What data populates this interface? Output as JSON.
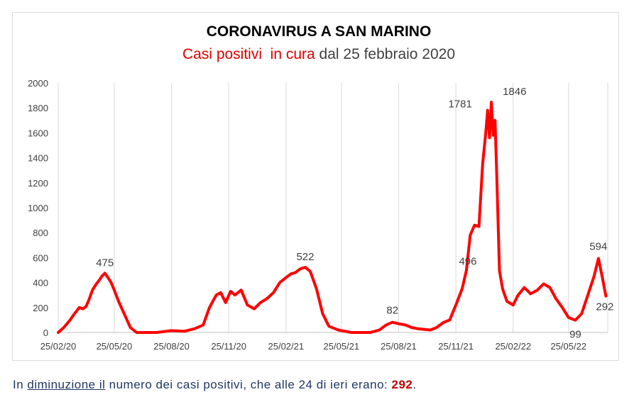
{
  "chart_data": {
    "type": "line",
    "title": "CORONAVIRUS A SAN MARINO",
    "subtitle_parts": [
      {
        "text": "Casi positivi  in cura",
        "color": "#e00000"
      },
      {
        "text": " dal 25 febbraio 2020",
        "color": "#404040"
      }
    ],
    "xlabel": "",
    "ylabel": "",
    "ylim": [
      0,
      2000
    ],
    "y_ticks": [
      "0",
      "200",
      "400",
      "600",
      "800",
      "1000",
      "1200",
      "1400",
      "1600",
      "1800",
      "2000"
    ],
    "x_ticks": [
      "25/02/20",
      "25/05/20",
      "25/08/20",
      "25/11/20",
      "25/02/21",
      "25/05/21",
      "25/08/21",
      "25/11/21",
      "25/02/22",
      "25/05/22"
    ],
    "grid": "vertical",
    "series_color": "#ff0000",
    "series": [
      {
        "x": [
          "2020-02-25",
          "2020-03-05",
          "2020-03-15",
          "2020-03-22",
          "2020-03-30",
          "2020-04-05",
          "2020-04-10",
          "2020-04-15",
          "2020-04-20",
          "2020-04-25",
          "2020-05-01",
          "2020-05-05",
          "2020-05-10",
          "2020-05-15",
          "2020-05-20",
          "2020-05-25",
          "2020-06-01",
          "2020-06-10",
          "2020-06-20",
          "2020-06-30",
          "2020-07-15",
          "2020-08-01",
          "2020-08-25",
          "2020-09-15",
          "2020-10-01",
          "2020-10-15",
          "2020-10-25",
          "2020-11-05",
          "2020-11-12",
          "2020-11-20",
          "2020-11-28",
          "2020-12-05",
          "2020-12-15",
          "2020-12-25",
          "2021-01-05",
          "2021-01-15",
          "2021-01-25",
          "2021-02-05",
          "2021-02-15",
          "2021-02-25",
          "2021-03-05",
          "2021-03-12",
          "2021-03-20",
          "2021-03-28",
          "2021-04-05",
          "2021-04-15",
          "2021-04-25",
          "2021-05-05",
          "2021-05-20",
          "2021-06-10",
          "2021-07-10",
          "2021-07-25",
          "2021-08-05",
          "2021-08-15",
          "2021-08-25",
          "2021-09-05",
          "2021-09-15",
          "2021-09-25",
          "2021-10-05",
          "2021-10-15",
          "2021-10-25",
          "2021-11-05",
          "2021-11-15",
          "2021-11-25",
          "2021-12-05",
          "2021-12-12",
          "2021-12-18",
          "2021-12-25",
          "2022-01-01",
          "2022-01-07",
          "2022-01-12",
          "2022-01-15",
          "2022-01-18",
          "2022-01-21",
          "2022-01-24",
          "2022-01-27",
          "2022-01-30",
          "2022-02-03",
          "2022-02-08",
          "2022-02-15",
          "2022-02-25",
          "2022-03-05",
          "2022-03-15",
          "2022-03-25",
          "2022-04-05",
          "2022-04-15",
          "2022-04-25",
          "2022-05-05",
          "2022-05-15",
          "2022-05-25",
          "2022-06-05",
          "2022-06-15",
          "2022-06-25",
          "2022-07-05",
          "2022-07-12",
          "2022-07-18",
          "2022-07-24"
        ],
        "y": [
          0,
          40,
          100,
          150,
          200,
          190,
          210,
          270,
          340,
          380,
          420,
          450,
          475,
          440,
          400,
          340,
          250,
          150,
          40,
          0,
          0,
          0,
          15,
          10,
          30,
          60,
          200,
          300,
          320,
          240,
          330,
          300,
          340,
          220,
          190,
          240,
          270,
          320,
          400,
          440,
          470,
          480,
          510,
          522,
          490,
          350,
          150,
          50,
          20,
          0,
          0,
          20,
          60,
          82,
          70,
          60,
          40,
          30,
          25,
          20,
          40,
          80,
          100,
          220,
          350,
          500,
          780,
          860,
          850,
          1350,
          1600,
          1781,
          1560,
          1846,
          1580,
          1700,
          1200,
          496,
          350,
          250,
          220,
          300,
          360,
          310,
          340,
          390,
          360,
          270,
          200,
          120,
          99,
          150,
          300,
          450,
          594,
          450,
          292
        ]
      }
    ],
    "annotations": [
      "475",
      "522",
      "82",
      "1781",
      "1846",
      "496",
      "594",
      "99",
      "292"
    ]
  },
  "footer": {
    "p1": "In ",
    "p2": "diminuzione  il",
    "p3": "  numero dei  casi positivi, che alle 24 di ieri  erano:  ",
    "value": "292",
    "p4": "."
  }
}
